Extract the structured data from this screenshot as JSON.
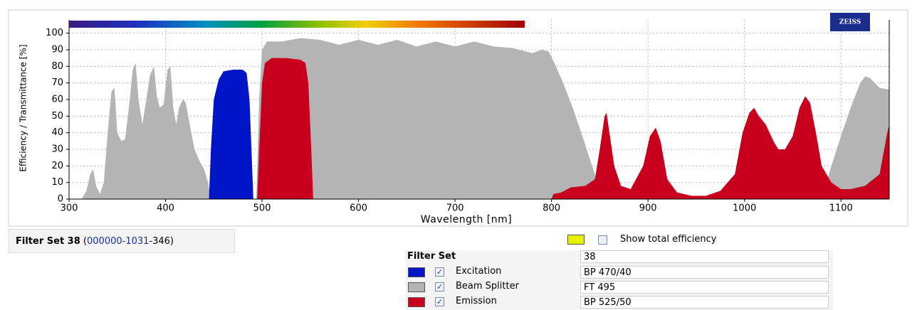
{
  "chart_data": {
    "type": "area",
    "xlabel": "Wavelength [nm]",
    "ylabel": "Efficiency / Transmittance [%]",
    "logo": "ZEISS",
    "xlim": [
      300,
      1150
    ],
    "ylim": [
      0,
      108
    ],
    "xticks": [
      300,
      400,
      500,
      600,
      700,
      800,
      900,
      1000,
      1100
    ],
    "yticks": [
      0,
      10,
      20,
      30,
      40,
      50,
      60,
      70,
      80,
      90,
      100
    ],
    "grid": true,
    "series": [
      {
        "name": "Beam Splitter",
        "color": "#b4b4b4",
        "x": [
          300,
          313,
          318,
          322,
          325,
          328,
          332,
          336,
          340,
          344,
          347,
          350,
          354,
          358,
          362,
          366,
          369,
          372,
          376,
          380,
          384,
          388,
          391,
          394,
          398,
          402,
          405,
          408,
          411,
          414,
          418,
          421,
          425,
          430,
          436,
          440,
          444,
          447,
          494,
          497,
          500,
          505,
          520,
          540,
          560,
          580,
          600,
          620,
          640,
          660,
          680,
          700,
          720,
          740,
          760,
          780,
          790,
          797,
          803,
          812,
          822,
          832,
          842,
          852,
          860,
          1080,
          1090,
          1100,
          1110,
          1120,
          1125,
          1130,
          1140,
          1150
        ],
        "values": [
          0,
          0,
          5,
          15,
          18,
          8,
          3,
          10,
          40,
          65,
          67,
          40,
          35,
          36,
          55,
          78,
          82,
          60,
          45,
          60,
          75,
          80,
          62,
          55,
          57,
          78,
          80,
          55,
          45,
          55,
          60,
          58,
          45,
          30,
          22,
          18,
          10,
          0,
          0,
          60,
          90,
          95,
          95,
          97,
          96,
          93,
          96,
          93,
          96,
          92,
          95,
          92,
          95,
          92,
          91,
          88,
          90,
          89,
          82,
          70,
          55,
          38,
          20,
          3,
          0,
          0,
          20,
          38,
          55,
          70,
          74,
          73,
          67,
          66
        ]
      },
      {
        "name": "Excitation",
        "color": "#0014c8",
        "x": [
          445,
          447,
          450,
          455,
          460,
          470,
          480,
          484,
          487,
          489,
          491
        ],
        "values": [
          0,
          30,
          60,
          72,
          77,
          78,
          78,
          76,
          60,
          30,
          0
        ]
      },
      {
        "name": "Emission",
        "color": "#c8001e",
        "x": [
          495,
          497,
          500,
          503,
          510,
          525,
          540,
          545,
          548,
          551,
          553,
          null,
          800,
          802,
          810,
          820,
          835,
          845,
          850,
          855,
          857,
          860,
          865,
          872,
          882,
          895,
          902,
          908,
          913,
          920,
          930,
          945,
          960,
          975,
          990,
          998,
          1005,
          1010,
          1015,
          1022,
          1030,
          1035,
          1042,
          1050,
          1057,
          1063,
          1068,
          1074,
          1080,
          1090,
          1100,
          1110,
          1125,
          1140,
          1148,
          1150
        ],
        "values": [
          0,
          30,
          70,
          82,
          85,
          85,
          84,
          82,
          70,
          30,
          0,
          null,
          0,
          3,
          4,
          7,
          8,
          12,
          30,
          50,
          52,
          40,
          20,
          8,
          6,
          20,
          38,
          43,
          35,
          12,
          4,
          2,
          2,
          5,
          15,
          40,
          52,
          55,
          50,
          45,
          35,
          30,
          30,
          38,
          55,
          62,
          58,
          40,
          20,
          10,
          6,
          6,
          8,
          15,
          40,
          45
        ]
      }
    ]
  },
  "filter_id": {
    "parts": [
      "Filter Set 38",
      " (",
      "000000-1031",
      "-346)"
    ]
  },
  "total_efficiency": {
    "label": "Show total efficiency",
    "color": "#e6f000"
  },
  "filter_table": {
    "header": "Filter Set",
    "header_value": "38",
    "values": [
      "BP 470/40",
      "FT 495",
      "BP 525/50"
    ]
  }
}
